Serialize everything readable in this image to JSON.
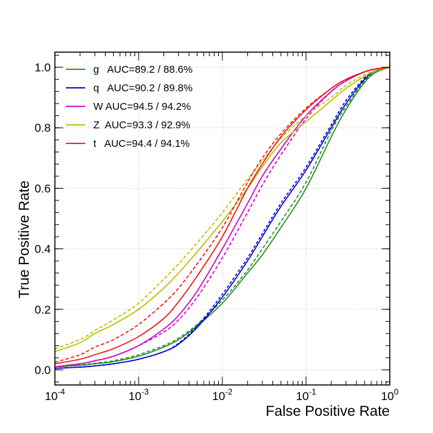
{
  "chart_data": {
    "type": "line",
    "xlabel": "False Positive Rate",
    "ylabel": "True Positive Rate",
    "xscale": "log",
    "xlim": [
      0.0001,
      1
    ],
    "ylim": [
      -0.05,
      1.05
    ],
    "x_ticks": [
      {
        "value": 0.0001,
        "base": "10",
        "exp": "-4"
      },
      {
        "value": 0.001,
        "base": "10",
        "exp": "-3"
      },
      {
        "value": 0.01,
        "base": "10",
        "exp": "-2"
      },
      {
        "value": 0.1,
        "base": "10",
        "exp": "-1"
      },
      {
        "value": 1,
        "base": "10",
        "exp": "0"
      }
    ],
    "y_ticks": [
      "0.0",
      "0.2",
      "0.4",
      "0.6",
      "0.8",
      "1.0"
    ],
    "grid": true,
    "legend_position": "top-left",
    "x": [
      0.0001,
      0.0002,
      0.0003,
      0.0005,
      0.001,
      0.002,
      0.003,
      0.005,
      0.01,
      0.02,
      0.03,
      0.05,
      0.1,
      0.2,
      0.3,
      0.5,
      0.7,
      1
    ],
    "series": [
      {
        "name": "g",
        "label": "g   AUC=89.2 / 88.6%",
        "color": "#228b22",
        "solid": [
          0.01,
          0.015,
          0.02,
          0.027,
          0.045,
          0.075,
          0.1,
          0.145,
          0.22,
          0.32,
          0.38,
          0.47,
          0.6,
          0.77,
          0.86,
          0.95,
          0.985,
          1.0
        ],
        "dashed": [
          0.01,
          0.016,
          0.022,
          0.03,
          0.05,
          0.08,
          0.105,
          0.15,
          0.23,
          0.33,
          0.4,
          0.49,
          0.62,
          0.79,
          0.87,
          0.955,
          0.985,
          1.0
        ]
      },
      {
        "name": "q",
        "label": "q   AUC=90.2 / 89.8%",
        "color": "#0000cc",
        "solid": [
          0.005,
          0.009,
          0.013,
          0.02,
          0.035,
          0.06,
          0.085,
          0.14,
          0.24,
          0.36,
          0.44,
          0.54,
          0.66,
          0.8,
          0.88,
          0.96,
          0.99,
          1.0
        ],
        "dashed": [
          0.005,
          0.009,
          0.013,
          0.02,
          0.035,
          0.06,
          0.088,
          0.145,
          0.25,
          0.37,
          0.45,
          0.55,
          0.67,
          0.81,
          0.89,
          0.965,
          0.99,
          1.0
        ],
        "dashed_style": "4,3"
      },
      {
        "name": "W",
        "label": "W AUC=94.5 / 94.2%",
        "color": "#cc00cc",
        "solid": [
          0.01,
          0.02,
          0.03,
          0.045,
          0.08,
          0.135,
          0.18,
          0.26,
          0.4,
          0.55,
          0.64,
          0.73,
          0.84,
          0.92,
          0.955,
          0.985,
          0.995,
          1.0
        ],
        "dashed": [
          0.01,
          0.02,
          0.03,
          0.045,
          0.08,
          0.125,
          0.165,
          0.24,
          0.37,
          0.52,
          0.61,
          0.71,
          0.83,
          0.92,
          0.955,
          0.985,
          0.995,
          1.0
        ]
      },
      {
        "name": "Z",
        "label": "Z  AUC=93.3 / 92.9%",
        "color": "#bbbb00",
        "solid": [
          0.06,
          0.09,
          0.12,
          0.15,
          0.2,
          0.27,
          0.32,
          0.39,
          0.49,
          0.6,
          0.67,
          0.75,
          0.82,
          0.89,
          0.93,
          0.97,
          0.99,
          1.0
        ],
        "dashed": [
          0.07,
          0.1,
          0.13,
          0.165,
          0.22,
          0.3,
          0.35,
          0.42,
          0.52,
          0.63,
          0.69,
          0.765,
          0.84,
          0.9,
          0.94,
          0.975,
          0.99,
          1.0
        ]
      },
      {
        "name": "t",
        "label": "t   AUC=94.4 / 94.1%",
        "color": "#ee1111",
        "solid": [
          0.02,
          0.035,
          0.05,
          0.07,
          0.11,
          0.17,
          0.225,
          0.31,
          0.44,
          0.6,
          0.68,
          0.77,
          0.86,
          0.93,
          0.96,
          0.985,
          0.995,
          1.0
        ],
        "dashed": [
          0.025,
          0.05,
          0.075,
          0.1,
          0.15,
          0.22,
          0.27,
          0.35,
          0.47,
          0.62,
          0.7,
          0.78,
          0.865,
          0.93,
          0.96,
          0.985,
          0.995,
          1.0
        ]
      }
    ]
  }
}
